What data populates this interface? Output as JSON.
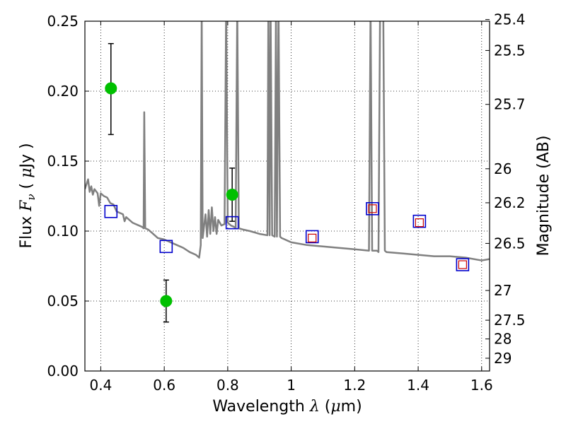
{
  "chart_data": {
    "type": "scatter",
    "xlabel": {
      "pre": "Wavelength  ",
      "sym": "λ",
      "post": " (",
      "mu": "μ",
      "unit": "m)"
    },
    "ylabel": {
      "pre": "Flux  ",
      "sym": "F",
      "sub": "ν",
      "post": "  ( ",
      "mu": "μ",
      "unit": "Jy )"
    },
    "y2label": "Magnitude (AB)",
    "xlim": [
      0.35,
      1.625
    ],
    "ylim": [
      0.0,
      0.25
    ],
    "grid": true,
    "x_ticks": [
      {
        "value": 0.4,
        "label": "0.4"
      },
      {
        "value": 0.6,
        "label": "0.6"
      },
      {
        "value": 0.8,
        "label": "0.8"
      },
      {
        "value": 1.0,
        "label": "1"
      },
      {
        "value": 1.2,
        "label": "1.2"
      },
      {
        "value": 1.4,
        "label": "1.4"
      },
      {
        "value": 1.6,
        "label": "1.6"
      }
    ],
    "y_ticks": [
      {
        "value": 0.0,
        "label": "0.00"
      },
      {
        "value": 0.05,
        "label": "0.05"
      },
      {
        "value": 0.1,
        "label": "0.10"
      },
      {
        "value": 0.15,
        "label": "0.15"
      },
      {
        "value": 0.2,
        "label": "0.20"
      },
      {
        "value": 0.25,
        "label": "0.25"
      }
    ],
    "y2_ticks": [
      {
        "value": 25.4,
        "label": "25.4"
      },
      {
        "value": 25.5,
        "label": "25.5"
      },
      {
        "value": 25.7,
        "label": "25.7"
      },
      {
        "value": 26,
        "label": "26"
      },
      {
        "value": 26.2,
        "label": "26.2"
      },
      {
        "value": 26.5,
        "label": "26.5"
      },
      {
        "value": 27,
        "label": "27"
      },
      {
        "value": 27.5,
        "label": "27.5"
      },
      {
        "value": 28,
        "label": "28"
      },
      {
        "value": 29,
        "label": "29"
      }
    ],
    "model_spectrum": {
      "color": "#808080",
      "points": [
        [
          0.35,
          0.13
        ],
        [
          0.36,
          0.137
        ],
        [
          0.365,
          0.128
        ],
        [
          0.37,
          0.132
        ],
        [
          0.375,
          0.126
        ],
        [
          0.38,
          0.13
        ],
        [
          0.39,
          0.127
        ],
        [
          0.395,
          0.118
        ],
        [
          0.4,
          0.127
        ],
        [
          0.41,
          0.125
        ],
        [
          0.42,
          0.124
        ],
        [
          0.43,
          0.12
        ],
        [
          0.44,
          0.119
        ],
        [
          0.45,
          0.114
        ],
        [
          0.46,
          0.113
        ],
        [
          0.47,
          0.112
        ],
        [
          0.475,
          0.107
        ],
        [
          0.48,
          0.11
        ],
        [
          0.49,
          0.108
        ],
        [
          0.5,
          0.106
        ],
        [
          0.51,
          0.105
        ],
        [
          0.52,
          0.104
        ],
        [
          0.53,
          0.103
        ],
        [
          0.535,
          0.102
        ],
        [
          0.537,
          0.185
        ],
        [
          0.54,
          0.102
        ],
        [
          0.55,
          0.101
        ],
        [
          0.56,
          0.099
        ],
        [
          0.57,
          0.097
        ],
        [
          0.58,
          0.095
        ],
        [
          0.6,
          0.094
        ],
        [
          0.62,
          0.092
        ],
        [
          0.64,
          0.09
        ],
        [
          0.66,
          0.088
        ],
        [
          0.68,
          0.085
        ],
        [
          0.7,
          0.083
        ],
        [
          0.71,
          0.081
        ],
        [
          0.715,
          0.09
        ],
        [
          0.718,
          0.26
        ],
        [
          0.721,
          0.095
        ],
        [
          0.73,
          0.112
        ],
        [
          0.735,
          0.096
        ],
        [
          0.74,
          0.115
        ],
        [
          0.745,
          0.098
        ],
        [
          0.75,
          0.117
        ],
        [
          0.755,
          0.1
        ],
        [
          0.76,
          0.11
        ],
        [
          0.765,
          0.098
        ],
        [
          0.77,
          0.108
        ],
        [
          0.78,
          0.104
        ],
        [
          0.79,
          0.105
        ],
        [
          0.795,
          0.26
        ],
        [
          0.8,
          0.106
        ],
        [
          0.81,
          0.104
        ],
        [
          0.82,
          0.103
        ],
        [
          0.825,
          0.102
        ],
        [
          0.83,
          0.26
        ],
        [
          0.835,
          0.102
        ],
        [
          0.85,
          0.101
        ],
        [
          0.87,
          0.1
        ],
        [
          0.9,
          0.098
        ],
        [
          0.925,
          0.097
        ],
        [
          0.928,
          0.26
        ],
        [
          0.932,
          0.097
        ],
        [
          0.935,
          0.26
        ],
        [
          0.94,
          0.097
        ],
        [
          0.948,
          0.096
        ],
        [
          0.952,
          0.26
        ],
        [
          0.955,
          0.096
        ],
        [
          0.96,
          0.26
        ],
        [
          0.965,
          0.096
        ],
        [
          0.97,
          0.095
        ],
        [
          1.0,
          0.092
        ],
        [
          1.05,
          0.09
        ],
        [
          1.1,
          0.089
        ],
        [
          1.15,
          0.088
        ],
        [
          1.2,
          0.087
        ],
        [
          1.245,
          0.086
        ],
        [
          1.25,
          0.26
        ],
        [
          1.255,
          0.086
        ],
        [
          1.27,
          0.086
        ],
        [
          1.275,
          0.085
        ],
        [
          1.28,
          0.26
        ],
        [
          1.285,
          0.26
        ],
        [
          1.29,
          0.26
        ],
        [
          1.295,
          0.086
        ],
        [
          1.3,
          0.085
        ],
        [
          1.35,
          0.084
        ],
        [
          1.4,
          0.083
        ],
        [
          1.45,
          0.082
        ],
        [
          1.5,
          0.082
        ],
        [
          1.55,
          0.081
        ],
        [
          1.6,
          0.079
        ],
        [
          1.625,
          0.08
        ]
      ]
    },
    "observed": {
      "color": "#00c000",
      "points": [
        {
          "x": 0.432,
          "y": 0.202,
          "yerr_low": 0.169,
          "yerr_high": 0.234
        },
        {
          "x": 0.606,
          "y": 0.05,
          "yerr_low": 0.035,
          "yerr_high": 0.065
        },
        {
          "x": 0.814,
          "y": 0.126,
          "yerr_low": 0.107,
          "yerr_high": 0.145
        }
      ]
    },
    "model_photometry": {
      "color": "#0000cc",
      "points": [
        {
          "x": 0.432,
          "y": 0.114
        },
        {
          "x": 0.606,
          "y": 0.089
        },
        {
          "x": 0.814,
          "y": 0.106
        },
        {
          "x": 1.066,
          "y": 0.096
        },
        {
          "x": 1.256,
          "y": 0.116
        },
        {
          "x": 1.404,
          "y": 0.107
        },
        {
          "x": 1.54,
          "y": 0.076
        }
      ]
    },
    "upper_markers": {
      "color": "#cc0000",
      "points": [
        {
          "x": 1.066,
          "y": 0.095
        },
        {
          "x": 1.256,
          "y": 0.116
        },
        {
          "x": 1.404,
          "y": 0.106
        },
        {
          "x": 1.54,
          "y": 0.076
        }
      ]
    }
  }
}
